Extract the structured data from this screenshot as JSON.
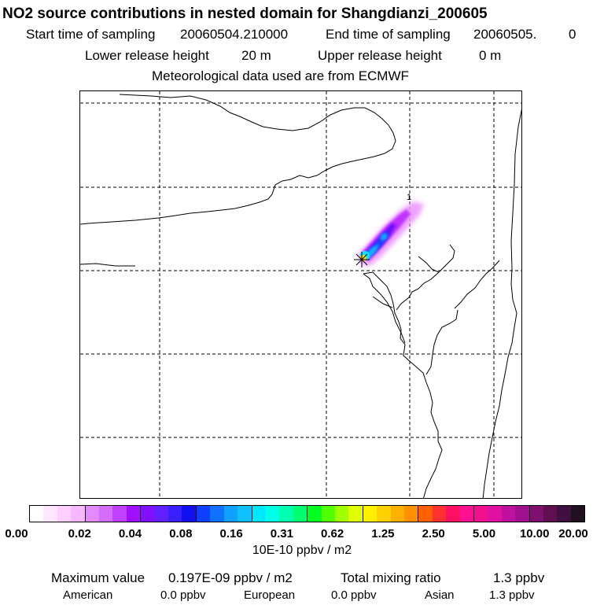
{
  "header": {
    "title": "NO2 source contributions in nested domain for Shangdianzi_200605",
    "start_label": "Start time of sampling",
    "start_value": "20060504.210000",
    "end_label": "End time of sampling",
    "end_value": "20060505.",
    "end_suffix": "0",
    "lower_label": "Lower release height",
    "lower_value": "20 m",
    "upper_label": "Upper release height",
    "upper_value": "0 m",
    "met_line": "Meteorological data used are from ECMWF"
  },
  "map": {
    "site_marker_label": "1"
  },
  "colorbar": {
    "colors": [
      "#ffffff",
      "#ffe8ff",
      "#ffd0ff",
      "#f8b8ff",
      "#e48aff",
      "#d46cff",
      "#c040ff",
      "#a010ff",
      "#8010ff",
      "#6020ff",
      "#3a20ff",
      "#1010f0",
      "#1040ff",
      "#1070ff",
      "#10a0ff",
      "#10c0ff",
      "#00e8ff",
      "#00ffe8",
      "#00ffb0",
      "#00ff70",
      "#00ff20",
      "#50ff00",
      "#a0ff00",
      "#e0ff00",
      "#fff000",
      "#ffd000",
      "#ffb000",
      "#ff9000",
      "#ff6000",
      "#ff3030",
      "#ff1060",
      "#ff1090",
      "#f01090",
      "#e010a0",
      "#c010a0",
      "#a01090",
      "#801070",
      "#601050",
      "#401040",
      "#201020"
    ],
    "ticks": [
      "0.00",
      "0.02",
      "0.04",
      "0.08",
      "0.16",
      "0.31",
      "0.62",
      "1.25",
      "2.50",
      "5.00",
      "10.00",
      "20.00"
    ],
    "unit": "10E-10 ppbv / m2"
  },
  "footer": {
    "max_label": "Maximum value",
    "max_value": "0.197E-09 ppbv / m2",
    "total_label": "Total mixing ratio",
    "total_value": "1.3 ppbv",
    "american_label": "American",
    "american_value": "0.0 ppbv",
    "european_label": "European",
    "european_value": "0.0 ppbv",
    "asian_label": "Asian",
    "asian_value": "1.3 ppbv"
  }
}
